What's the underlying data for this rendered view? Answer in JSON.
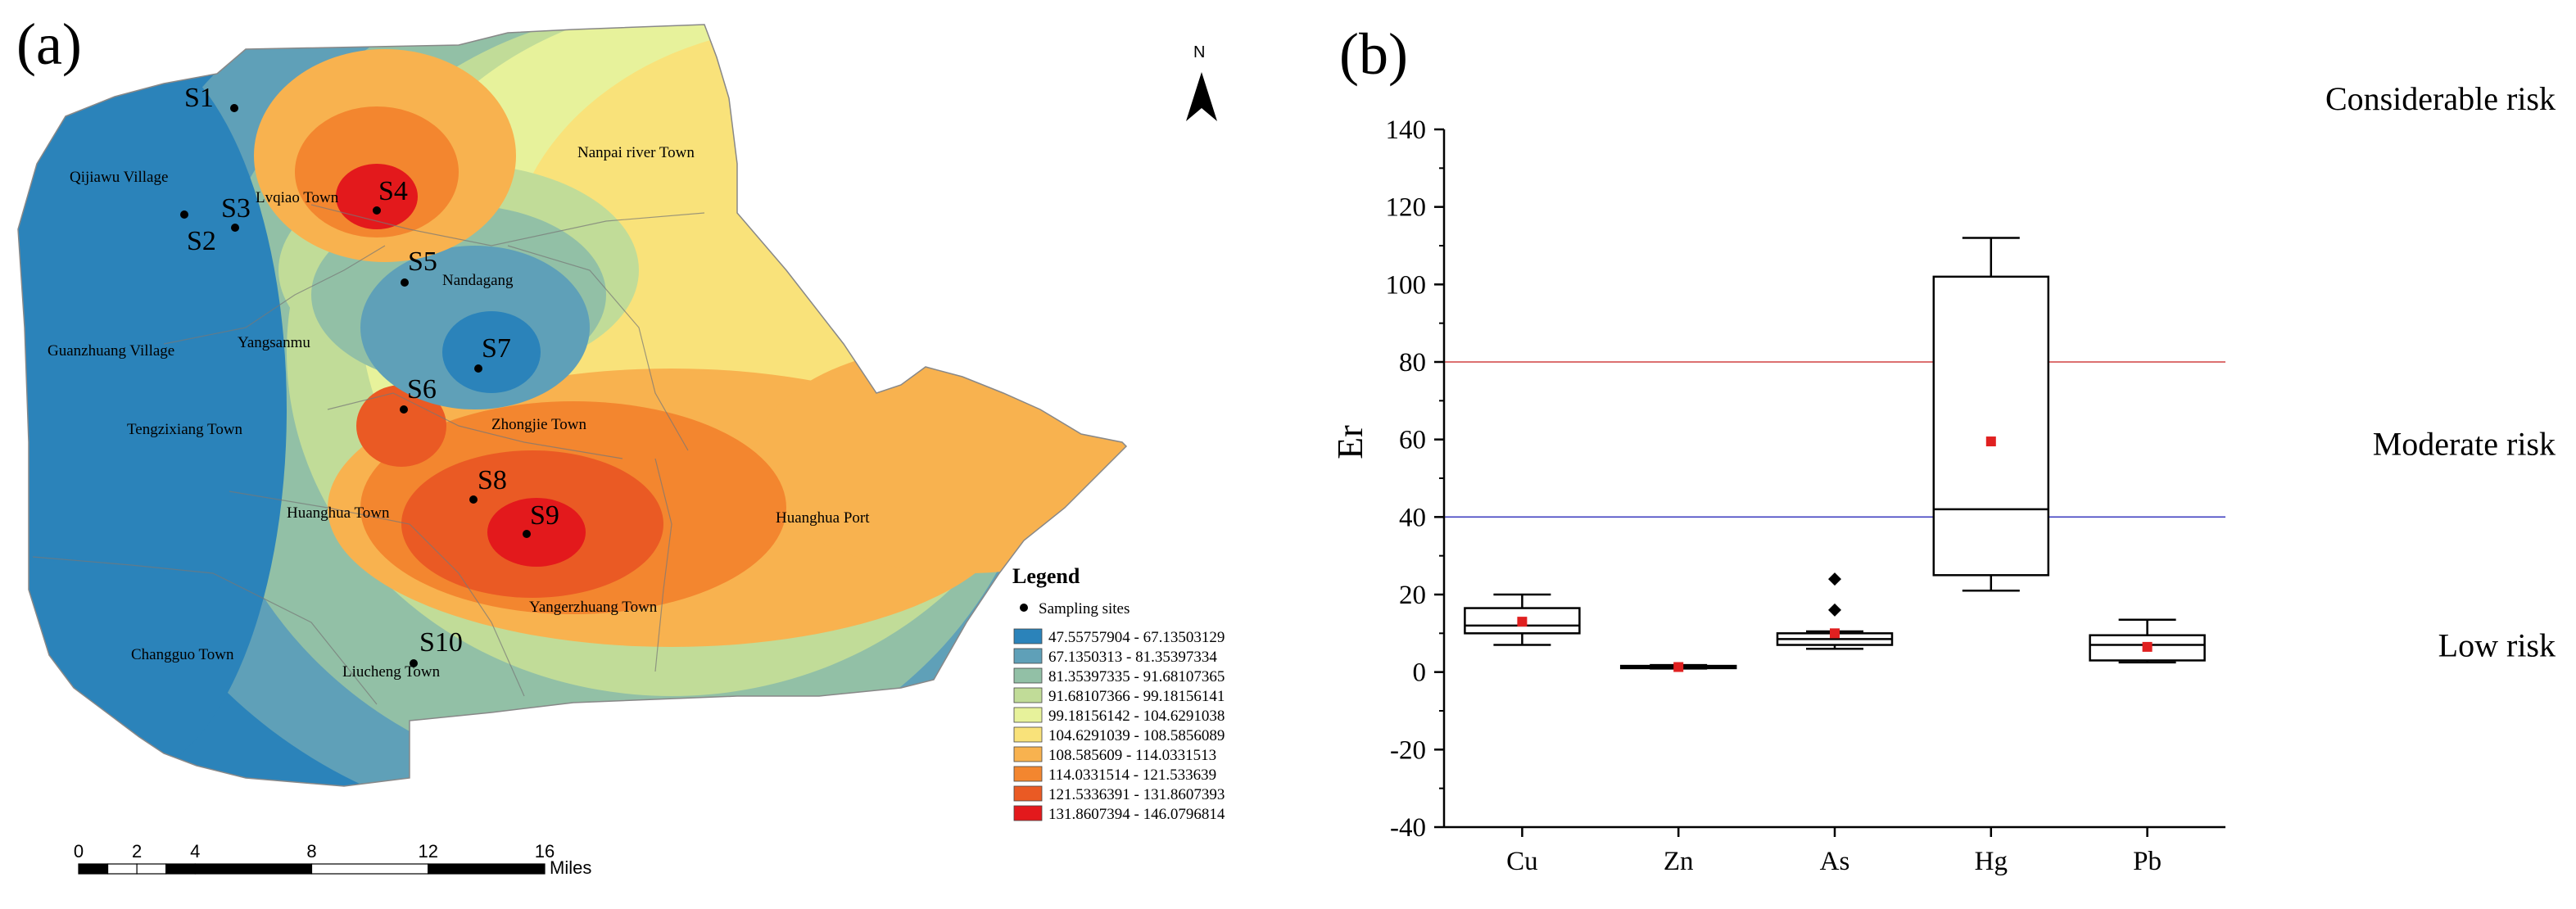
{
  "panels": {
    "a": "(a)",
    "b": "(b)"
  },
  "map": {
    "north_label": "N",
    "sites": [
      {
        "label": "S1"
      },
      {
        "label": "S2"
      },
      {
        "label": "S3"
      },
      {
        "label": "S4"
      },
      {
        "label": "S5"
      },
      {
        "label": "S6"
      },
      {
        "label": "S7"
      },
      {
        "label": "S8"
      },
      {
        "label": "S9"
      },
      {
        "label": "S10"
      }
    ],
    "places": [
      "Qijiawu Village",
      "Lvqiao Town",
      "Nanpai river Town",
      "Nandagang",
      "Guanzhuang Village",
      "Yangsanmu",
      "Tengzixiang Town",
      "Zhongjie Town",
      "Huanghua Town",
      "Huanghua Port",
      "Yangerzhuang Town",
      "Changguo Town",
      "Liucheng Town"
    ],
    "legend": {
      "title": "Legend",
      "sampling_label": "Sampling sites",
      "classes": [
        {
          "range": "47.55757904 - 67.13503129",
          "color": "#2b83ba"
        },
        {
          "range": "67.1350313 - 81.35397334",
          "color": "#5fa0b8"
        },
        {
          "range": "81.35397335 - 91.68107365",
          "color": "#92c0a6"
        },
        {
          "range": "91.68107366 - 99.18156141",
          "color": "#c1dc98"
        },
        {
          "range": "99.18156142 - 104.6291038",
          "color": "#e7f29b"
        },
        {
          "range": "104.6291039 - 108.5856089",
          "color": "#f9e27a"
        },
        {
          "range": "108.585609 - 114.0331513",
          "color": "#f8b24f"
        },
        {
          "range": "114.0331514 - 121.533639",
          "color": "#f3862f"
        },
        {
          "range": "121.5336391 - 131.8607393",
          "color": "#ea5a24"
        },
        {
          "range": "131.8607394 - 146.0796814",
          "color": "#e3191c"
        }
      ]
    },
    "scalebar": {
      "ticks": [
        "0",
        "2",
        "4",
        "8",
        "12",
        "16"
      ],
      "unit": "Miles"
    }
  },
  "chart_data": {
    "type": "box",
    "categories": [
      "Cu",
      "Zn",
      "As",
      "Hg",
      "Pb"
    ],
    "ylabel": "Er",
    "ylim": [
      -40,
      140
    ],
    "yticks": [
      -40,
      -20,
      0,
      20,
      40,
      60,
      80,
      100,
      120,
      140
    ],
    "boxes": [
      {
        "category": "Cu",
        "whisker_low": 7,
        "q1": 10,
        "median": 12,
        "q3": 16.5,
        "whisker_high": 20,
        "mean": 13,
        "outliers": []
      },
      {
        "category": "Zn",
        "whisker_low": 0.9,
        "q1": 1.0,
        "median": 1.3,
        "q3": 1.6,
        "whisker_high": 1.8,
        "mean": 1.3,
        "outliers": []
      },
      {
        "category": "As",
        "whisker_low": 6,
        "q1": 7,
        "median": 8.5,
        "q3": 10,
        "whisker_high": 10.5,
        "mean": 10,
        "outliers": [
          16,
          24
        ]
      },
      {
        "category": "Hg",
        "whisker_low": 21,
        "q1": 25,
        "median": 42,
        "q3": 102,
        "whisker_high": 112,
        "mean": 59.5,
        "outliers": []
      },
      {
        "category": "Pb",
        "whisker_low": 2.5,
        "q1": 3,
        "median": 7,
        "q3": 9.5,
        "whisker_high": 13.5,
        "mean": 6.5,
        "outliers": []
      }
    ],
    "thresholds": [
      {
        "value": 40,
        "color": "#4040c0"
      },
      {
        "value": 80,
        "color": "#d04040"
      }
    ],
    "risk_labels": [
      {
        "text": "Considerable risk",
        "y": 148
      },
      {
        "text": "Moderate risk",
        "y": 59
      },
      {
        "text": "Low risk",
        "y": 7
      }
    ],
    "grid": false,
    "mean_marker_color": "#e02020"
  }
}
